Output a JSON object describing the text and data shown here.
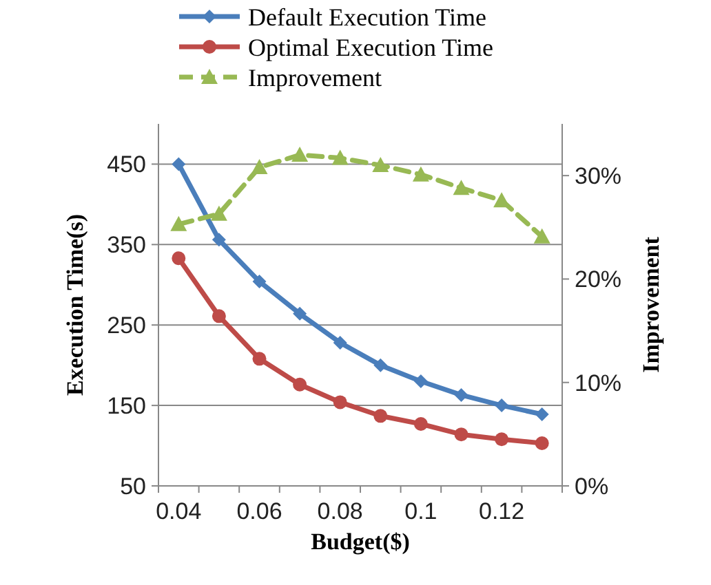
{
  "chart_data": {
    "type": "line",
    "xlabel": "Budget($)",
    "ylabel": "Execution Time(s)",
    "y2label": "Improvement",
    "categories": [
      "0.04",
      null,
      "0.06",
      null,
      "0.08",
      null,
      "0.1",
      null,
      "0.12",
      null
    ],
    "series": [
      {
        "name": "Default Execution Time",
        "color": "#4a7ebb",
        "marker": "diamond",
        "line_style": "solid",
        "values": [
          450,
          356,
          304,
          264,
          228,
          200,
          180,
          163,
          150,
          139
        ]
      },
      {
        "name": "Optimal Execution Time",
        "color": "#be4b48",
        "marker": "circle",
        "line_style": "solid",
        "values": [
          333,
          261,
          208,
          176,
          154,
          137,
          127,
          114,
          108,
          103
        ]
      },
      {
        "name": "Improvement",
        "color": "#98b954",
        "marker": "triangle",
        "line_style": "dashed",
        "axis": "y2",
        "values": [
          25.3,
          26.3,
          30.8,
          32.0,
          31.7,
          31.0,
          30.1,
          28.8,
          27.6,
          24.1
        ]
      }
    ],
    "ylim": [
      50,
      500
    ],
    "yticks": [
      50,
      150,
      250,
      350,
      450
    ],
    "y2lim": [
      0,
      35
    ],
    "y2ticks": [
      {
        "value": 0,
        "label": "0%"
      },
      {
        "value": 10,
        "label": "10%"
      },
      {
        "value": 20,
        "label": "20%"
      },
      {
        "value": 30,
        "label": "30%"
      }
    ],
    "grid": "y",
    "legend": "top"
  }
}
